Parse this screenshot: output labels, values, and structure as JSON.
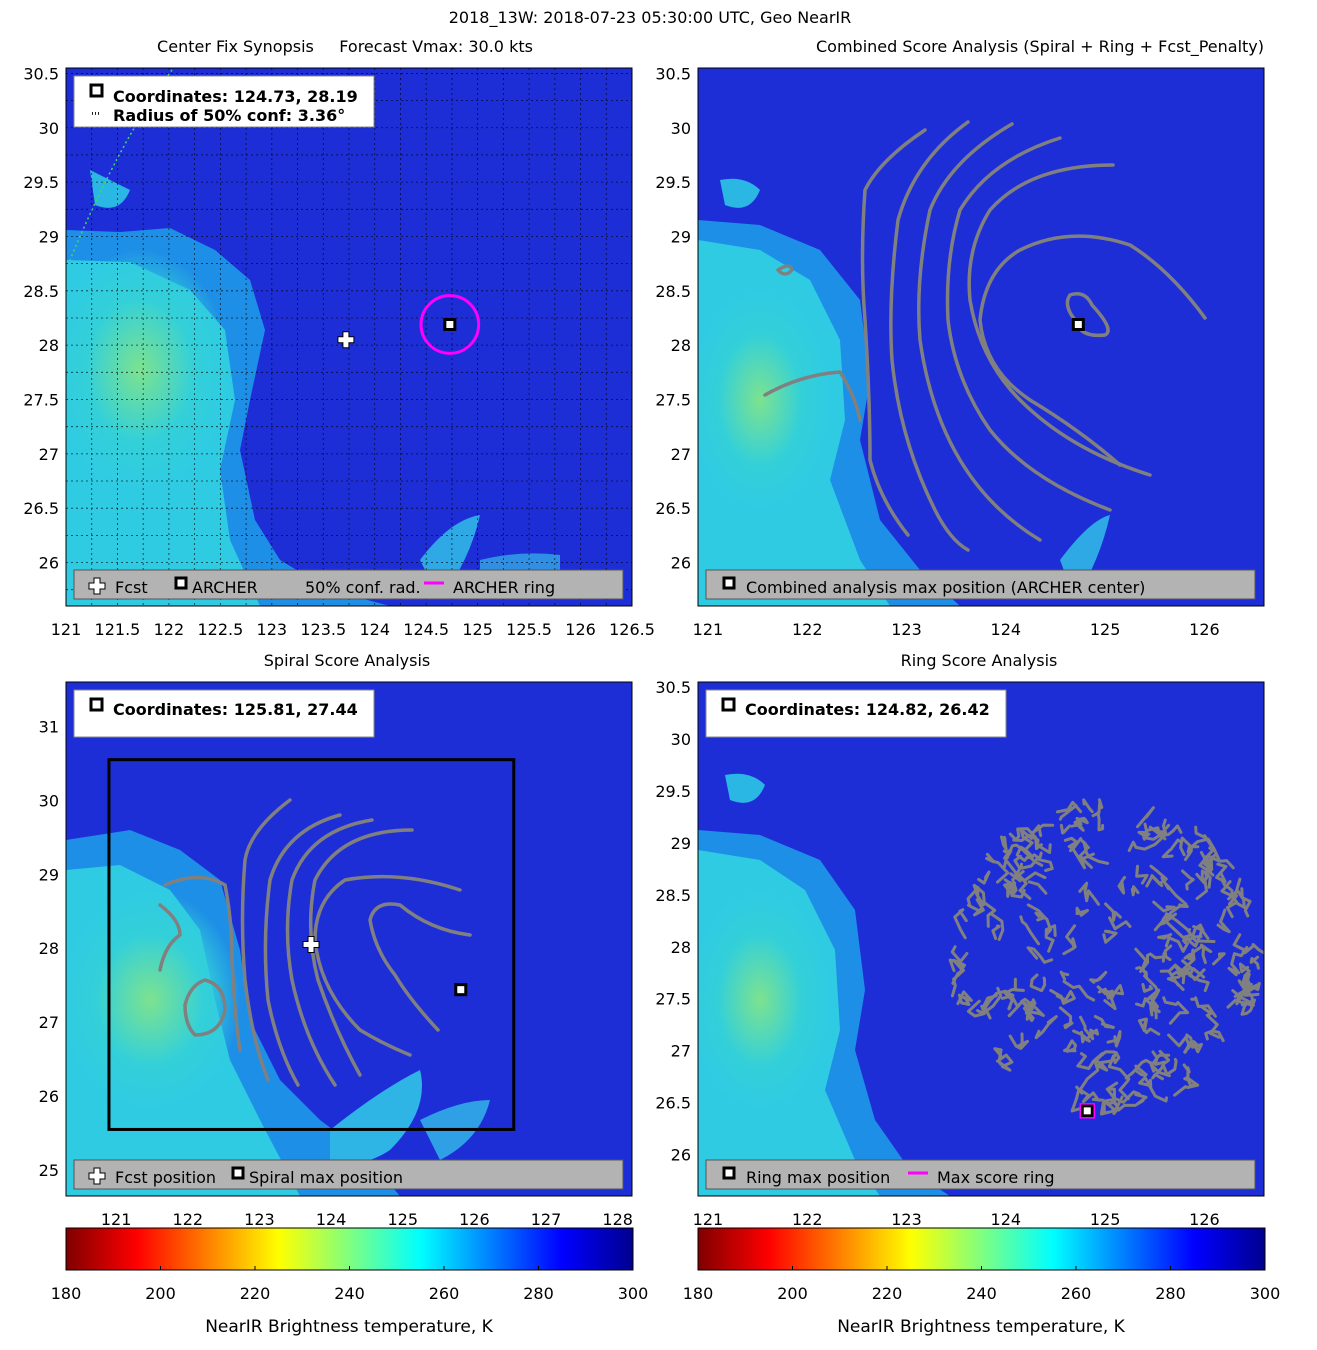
{
  "figure_title": "2018_13W: 2018-07-23 05:30:00 UTC, Geo NearIR",
  "panels": {
    "p1": {
      "title": "Center Fix Synopsis     Forecast Vmax: 30.0 kts",
      "info": [
        "Coordinates: 124.73, 28.19",
        "Radius of 50% conf: 3.36°"
      ],
      "legend": [
        "Fcst",
        "ARCHER",
        "50% conf. rad.",
        "ARCHER ring"
      ]
    },
    "p2": {
      "title": "Combined Score Analysis (Spiral + Ring + Fcst_Penalty)",
      "legend": [
        "Combined analysis max position (ARCHER center)"
      ]
    },
    "p3": {
      "title": "Spiral Score Analysis",
      "info": [
        "Coordinates: 125.81, 27.44"
      ],
      "legend": [
        "Fcst position",
        "Spiral max position"
      ]
    },
    "p4": {
      "title": "Ring Score Analysis",
      "info": [
        "Coordinates: 124.82, 26.42"
      ],
      "legend": [
        "Ring max position",
        "Max score ring"
      ]
    }
  },
  "colorbar": {
    "label": "NearIR Brightness temperature, K",
    "ticks": [
      "180",
      "200",
      "220",
      "240",
      "260",
      "280",
      "300"
    ]
  },
  "colors": {
    "archer_ring": "#ff00ff",
    "contour": "#808080",
    "background_field": "#1d2ed8"
  },
  "chart_data": [
    {
      "type": "heatmap",
      "panel": "p1",
      "title": "Center Fix Synopsis",
      "xlim": [
        121,
        126.5
      ],
      "ylim": [
        25.6,
        30.55
      ],
      "xticks": [
        "121",
        "121.5",
        "122",
        "122.5",
        "123",
        "123.5",
        "124",
        "124.5",
        "125",
        "125.5",
        "126",
        "126.5"
      ],
      "yticks": [
        "26",
        "26.5",
        "27",
        "27.5",
        "28",
        "28.5",
        "29",
        "29.5",
        "30",
        "30.5"
      ],
      "points": {
        "forecast": [
          123.72,
          28.05
        ],
        "archer": [
          124.73,
          28.19
        ]
      },
      "archer_ring_radius_deg": 0.28
    },
    {
      "type": "heatmap",
      "panel": "p2",
      "title": "Combined Score Analysis (Spiral + Ring + Fcst_Penalty)",
      "xlim": [
        120.9,
        126.6
      ],
      "ylim": [
        25.6,
        30.55
      ],
      "xticks": [
        "121",
        "122",
        "123",
        "124",
        "125",
        "126"
      ],
      "yticks": [
        "26",
        "26.5",
        "27",
        "27.5",
        "28",
        "28.5",
        "29",
        "29.5",
        "30",
        "30.5"
      ],
      "points": {
        "archer": [
          124.73,
          28.19
        ]
      }
    },
    {
      "type": "heatmap",
      "panel": "p3",
      "title": "Spiral Score Analysis",
      "xlim": [
        120.3,
        128.2
      ],
      "ylim": [
        24.65,
        31.6
      ],
      "xticks": [
        "121",
        "122",
        "123",
        "124",
        "125",
        "126",
        "127",
        "128"
      ],
      "yticks": [
        "25",
        "26",
        "27",
        "28",
        "29",
        "30",
        "31"
      ],
      "points": {
        "forecast": [
          123.72,
          28.05
        ],
        "spiral_max": [
          125.81,
          27.44
        ]
      },
      "search_box": {
        "x": [
          120.9,
          126.55
        ],
        "y": [
          25.55,
          30.55
        ]
      }
    },
    {
      "type": "heatmap",
      "panel": "p4",
      "title": "Ring Score Analysis",
      "xlim": [
        120.9,
        126.6
      ],
      "ylim": [
        25.6,
        30.55
      ],
      "xticks": [
        "121",
        "122",
        "123",
        "124",
        "125",
        "126"
      ],
      "yticks": [
        "26",
        "26.5",
        "27",
        "27.5",
        "28",
        "28.5",
        "29",
        "29.5",
        "30",
        "30.5"
      ],
      "points": {
        "ring_max": [
          124.82,
          26.42
        ]
      },
      "ring_contour_center": [
        125.0,
        27.9
      ],
      "ring_contour_radius_deg": 1.6
    }
  ]
}
